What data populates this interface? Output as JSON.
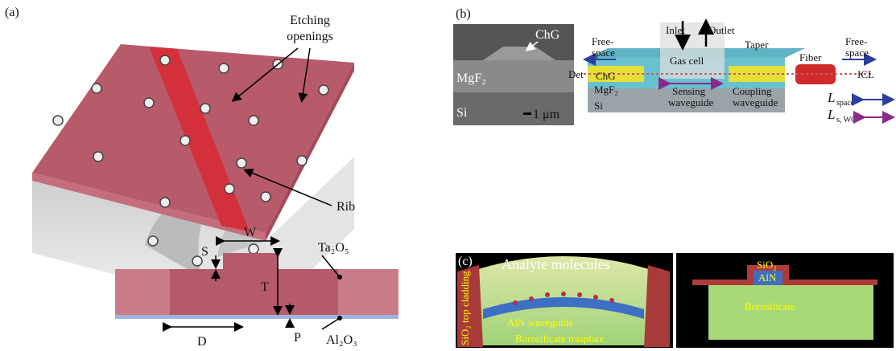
{
  "panel_a": {
    "label": "(a)",
    "etching": [
      "Etching",
      "openings"
    ],
    "rib": "Rib",
    "dims": {
      "s": "S",
      "w": "W",
      "t": "T",
      "d": "D",
      "p": "P"
    },
    "materials": {
      "top": "Ta₂O₅",
      "bottom": "Al₂O₃"
    }
  },
  "panel_b": {
    "label": "(b)",
    "sem": {
      "chg": "ChG",
      "mgf2": "MgF₂",
      "si": "Si",
      "scale": "1 μm"
    },
    "device": {
      "inlet": "Inlet",
      "outlet": "Outlet",
      "free_space_left": [
        "Free-",
        "space"
      ],
      "det": "Det",
      "gas_cell": "Gas cell",
      "taper": "Taper",
      "fiber": "Fiber",
      "free_space_right": [
        "Free-",
        "space"
      ],
      "icl": "ICL",
      "chg": "ChG",
      "mgf2": "MgF₂",
      "sensing": [
        "Sensing",
        "waveguide"
      ],
      "coupling": [
        "Coupling",
        "waveguide"
      ],
      "si": "Si"
    },
    "legend": [
      {
        "symbol": "L",
        "subscript": "space"
      },
      {
        "symbol": "L",
        "subscript": "s, WG"
      }
    ]
  },
  "panel_c": {
    "label": "(c)",
    "analyte": "Analyte molecules",
    "cladding": "SiO₂ top cladding",
    "waveguide": "AlN waveguide",
    "substrate": "Borosilicate trasplate",
    "cross": {
      "sio2": "SiO₂",
      "aln": "AlN",
      "substrate": "Borosilicate"
    }
  }
}
